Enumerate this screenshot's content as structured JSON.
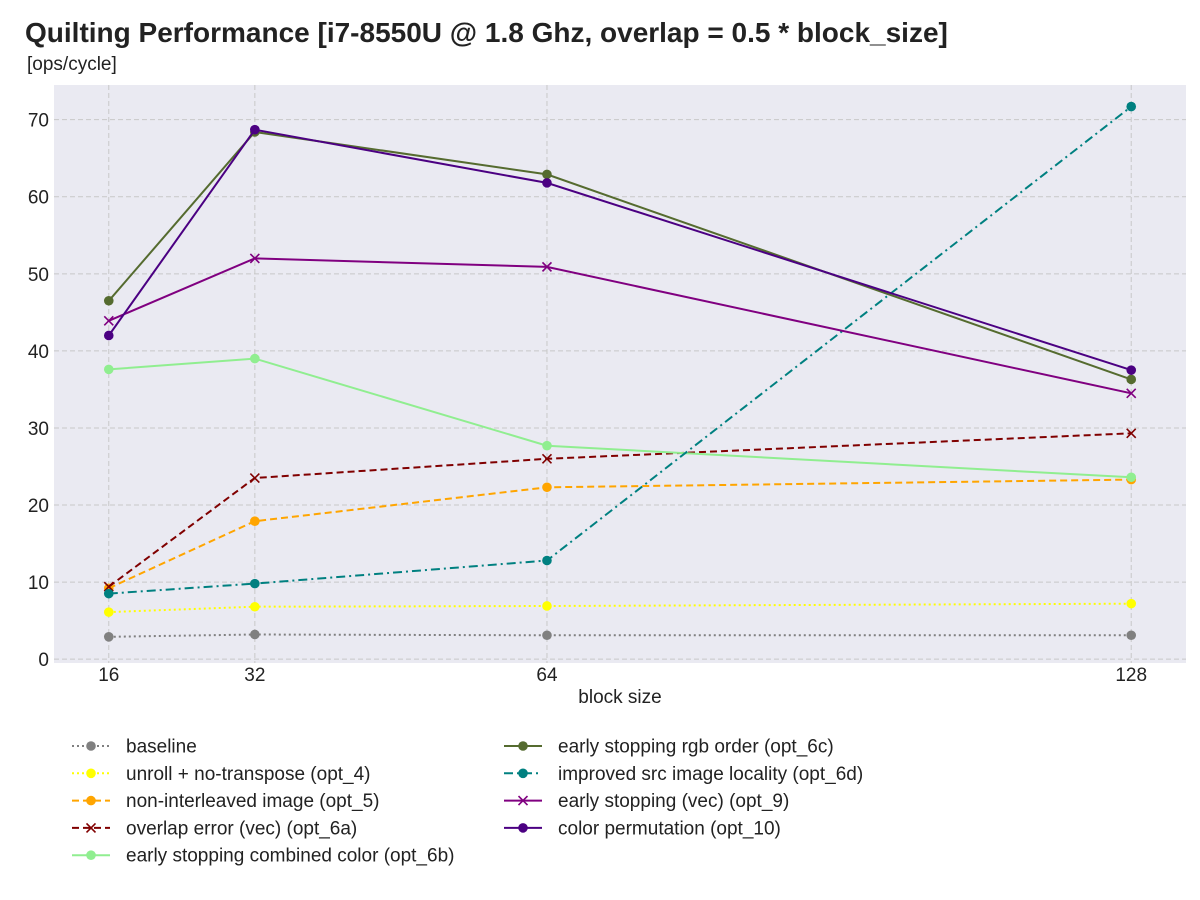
{
  "chart_data": {
    "type": "line",
    "title": "Quilting Performance [i7-8550U @ 1.8 Ghz, overlap = 0.5 * block_size]",
    "subtitle": "[ops/cycle]",
    "xlabel": "block size",
    "ylabel": "",
    "x": [
      16,
      32,
      64,
      128
    ],
    "x_ticks": [
      "16",
      "32",
      "64",
      "128"
    ],
    "xlim": [
      10,
      134
    ],
    "ylim": [
      -0.5,
      74.5
    ],
    "y_ticks": [
      0,
      10,
      20,
      30,
      40,
      50,
      60,
      70
    ],
    "y_tick_labels": [
      "0",
      "10",
      "20",
      "30",
      "40",
      "50",
      "60",
      "70"
    ],
    "grid": true,
    "legend_position": "bottom",
    "plot_background": "#eaeaf2",
    "series": [
      {
        "name": "baseline",
        "values": [
          2.9,
          3.2,
          3.1,
          3.1
        ],
        "color": "#808080",
        "dash": "dotted",
        "marker": "circle"
      },
      {
        "name": "unroll + no-transpose (opt_4)",
        "values": [
          6.1,
          6.8,
          6.9,
          7.2
        ],
        "color": "#ffff00",
        "dash": "dotted",
        "marker": "circle"
      },
      {
        "name": "non-interleaved image (opt_5)",
        "values": [
          9.2,
          17.9,
          22.3,
          23.3
        ],
        "color": "#ffa500",
        "dash": "dashed",
        "marker": "circle"
      },
      {
        "name": "overlap error (vec) (opt_6a)",
        "values": [
          9.4,
          23.5,
          26.0,
          29.3
        ],
        "color": "#800000",
        "dash": "dashed",
        "marker": "x"
      },
      {
        "name": "early stopping combined color (opt_6b)",
        "values": [
          37.6,
          39.0,
          27.7,
          23.6
        ],
        "color": "#90ee90",
        "dash": "solid",
        "marker": "circle"
      },
      {
        "name": "early stopping rgb order (opt_6c)",
        "values": [
          46.5,
          68.4,
          62.9,
          36.3
        ],
        "color": "#556b2f",
        "dash": "solid",
        "marker": "circle"
      },
      {
        "name": "improved src image locality (opt_6d)",
        "values": [
          8.5,
          9.8,
          12.8,
          71.7
        ],
        "color": "#008080",
        "dash": "dashdot",
        "marker": "circle"
      },
      {
        "name": "early stopping (vec) (opt_9)",
        "values": [
          43.9,
          52.0,
          50.9,
          34.5
        ],
        "color": "#800080",
        "dash": "solid",
        "marker": "x"
      },
      {
        "name": "color permutation (opt_10)",
        "values": [
          42.0,
          68.7,
          61.8,
          37.5
        ],
        "color": "#4b0082",
        "dash": "solid",
        "marker": "circle"
      }
    ]
  }
}
